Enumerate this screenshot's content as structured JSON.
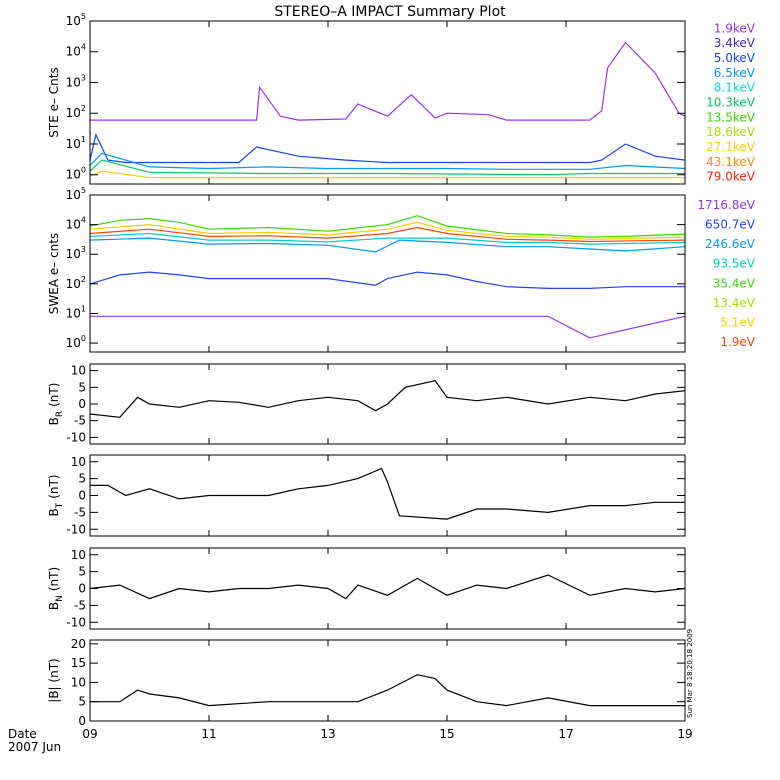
{
  "title": "STEREO–A IMPACT Summary Plot",
  "date_label": "Date",
  "date_range_label": "2007 Jun",
  "timestamp": "Sun Mar  8 18:20:18 2009",
  "x_ticks": [
    "09",
    "11",
    "13",
    "15",
    "17",
    "19"
  ],
  "x_tick_values": [
    9,
    11,
    13,
    15,
    17,
    19
  ],
  "x_range": [
    9,
    19
  ],
  "chart_data": [
    {
      "type": "line",
      "id": "ste",
      "ylabel": "STE e– Cnts",
      "yscale": "log",
      "ylim": [
        0.5,
        100000
      ],
      "yticks": [
        {
          "v": 1,
          "b": "10",
          "e": "0"
        },
        {
          "v": 10,
          "b": "10",
          "e": "1"
        },
        {
          "v": 100,
          "b": "10",
          "e": "2"
        },
        {
          "v": 1000,
          "b": "10",
          "e": "3"
        },
        {
          "v": 10000,
          "b": "10",
          "e": "4"
        },
        {
          "v": 100000,
          "b": "10",
          "e": "5"
        }
      ],
      "legend": [
        {
          "label": "1.9keV",
          "color": "#9933ee"
        },
        {
          "label": "3.4keV",
          "color": "#4422cc"
        },
        {
          "label": "5.0keV",
          "color": "#1144ff"
        },
        {
          "label": "6.5keV",
          "color": "#0099ff"
        },
        {
          "label": "8.1keV",
          "color": "#00dddd"
        },
        {
          "label": "10.3keV",
          "color": "#00cc66"
        },
        {
          "label": "13.5keV",
          "color": "#33dd00"
        },
        {
          "label": "18.6keV",
          "color": "#aadd00"
        },
        {
          "label": "27.1keV",
          "color": "#ffcc00"
        },
        {
          "label": "43.1keV",
          "color": "#ff8800"
        },
        {
          "label": "79.0keV",
          "color": "#ff2200"
        }
      ],
      "series": [
        {
          "color": "#9933ee",
          "x": [
            9.0,
            11.8,
            11.85,
            12.2,
            12.5,
            13.3,
            13.5,
            14.0,
            14.4,
            14.8,
            15.0,
            15.7,
            16.0,
            16.7,
            17.4,
            17.6,
            17.7,
            18.0,
            18.5,
            18.9,
            19.0
          ],
          "y": [
            60,
            60,
            700,
            80,
            60,
            65,
            200,
            80,
            400,
            70,
            100,
            90,
            60,
            60,
            60,
            120,
            3000,
            20000,
            2000,
            100,
            80
          ]
        },
        {
          "color": "#1144ff",
          "x": [
            9.0,
            9.1,
            9.3,
            9.6,
            10.5,
            11.5,
            11.8,
            12.5,
            13.3,
            14.0,
            15.0,
            16.0,
            16.7,
            17.4,
            17.6,
            18.0,
            18.5,
            19.0
          ],
          "y": [
            3,
            20,
            3,
            2.5,
            2.5,
            2.5,
            8,
            4,
            3,
            2.5,
            2.5,
            2.5,
            2.5,
            2.5,
            3,
            10,
            4,
            3
          ]
        },
        {
          "color": "#0099ff",
          "x": [
            9.0,
            9.2,
            10.0,
            11.0,
            12.0,
            13.0,
            14.0,
            15.0,
            16.0,
            16.7,
            17.4,
            18.0,
            19.0
          ],
          "y": [
            2,
            5,
            1.8,
            1.6,
            1.8,
            1.6,
            1.6,
            1.6,
            1.5,
            1.5,
            1.5,
            2,
            1.6
          ]
        },
        {
          "color": "#00cc66",
          "x": [
            9.0,
            9.2,
            10.0,
            12.0,
            14.0,
            16.7,
            17.4,
            19.0
          ],
          "y": [
            1.3,
            3,
            1.2,
            1.1,
            1.1,
            1.0,
            1.1,
            1.1
          ]
        },
        {
          "color": "#ffcc00",
          "x": [
            9.0,
            9.2,
            10.0,
            12.0,
            14.0,
            16.7,
            17.4,
            19.0
          ],
          "y": [
            0.9,
            1.3,
            0.8,
            0.8,
            0.8,
            0.8,
            0.8,
            0.8
          ]
        }
      ]
    },
    {
      "type": "line",
      "id": "swea",
      "ylabel": "SWEA e– cnts",
      "yscale": "log",
      "ylim": [
        0.5,
        100000
      ],
      "yticks": [
        {
          "v": 1,
          "b": "10",
          "e": "0"
        },
        {
          "v": 10,
          "b": "10",
          "e": "1"
        },
        {
          "v": 100,
          "b": "10",
          "e": "2"
        },
        {
          "v": 1000,
          "b": "10",
          "e": "3"
        },
        {
          "v": 10000,
          "b": "10",
          "e": "4"
        },
        {
          "v": 100000,
          "b": "10",
          "e": "5"
        }
      ],
      "legend": [
        {
          "label": "1716.8eV",
          "color": "#9933ee"
        },
        {
          "label": "650.7eV",
          "color": "#2244ff"
        },
        {
          "label": "246.6eV",
          "color": "#0099ff"
        },
        {
          "label": "93.5eV",
          "color": "#00cccc"
        },
        {
          "label": "35.4eV",
          "color": "#33dd00"
        },
        {
          "label": "13.4eV",
          "color": "#aadd00"
        },
        {
          "label": "5.1eV",
          "color": "#ffcc00"
        },
        {
          "label": "1.9eV",
          "color": "#ff4400"
        }
      ],
      "series": [
        {
          "color": "#9933ee",
          "x": [
            9.0,
            16.7,
            17.4,
            19.0
          ],
          "y": [
            8,
            8,
            1.5,
            8
          ]
        },
        {
          "color": "#2244ff",
          "x": [
            9.0,
            9.5,
            10.0,
            10.5,
            11.0,
            12.0,
            13.0,
            13.8,
            14.0,
            14.5,
            15.0,
            15.5,
            16.0,
            16.7,
            17.4,
            18.0,
            19.0
          ],
          "y": [
            100,
            200,
            250,
            200,
            150,
            150,
            150,
            90,
            150,
            250,
            200,
            120,
            80,
            70,
            70,
            80,
            80
          ]
        },
        {
          "color": "#0099ff",
          "x": [
            9.0,
            10.0,
            11.0,
            12.0,
            13.0,
            13.8,
            14.2,
            15.0,
            16.0,
            16.7,
            17.4,
            18.0,
            19.0
          ],
          "y": [
            3000,
            3500,
            2200,
            2300,
            2000,
            1200,
            3000,
            2500,
            1800,
            1800,
            1500,
            1300,
            1800
          ]
        },
        {
          "color": "#00cccc",
          "x": [
            9.0,
            10.0,
            11.0,
            12.0,
            13.0,
            14.0,
            15.0,
            16.0,
            16.7,
            17.4,
            19.0
          ],
          "y": [
            4000,
            5000,
            3000,
            3000,
            2600,
            3500,
            3500,
            2500,
            2500,
            2200,
            2500
          ]
        },
        {
          "color": "#33dd00",
          "x": [
            9.0,
            9.5,
            10.0,
            10.5,
            11.0,
            12.0,
            13.0,
            14.0,
            14.5,
            15.0,
            16.0,
            16.7,
            17.4,
            18.0,
            19.0
          ],
          "y": [
            9000,
            14000,
            16000,
            12000,
            7000,
            8000,
            6000,
            10000,
            20000,
            9000,
            5000,
            4500,
            3800,
            4000,
            4800
          ]
        },
        {
          "color": "#ffcc00",
          "x": [
            9.0,
            10.0,
            11.0,
            12.0,
            13.0,
            14.0,
            14.5,
            15.0,
            16.0,
            16.7,
            17.4,
            19.0
          ],
          "y": [
            7000,
            10000,
            5000,
            5500,
            4500,
            7000,
            12000,
            6500,
            4000,
            3800,
            3200,
            3800
          ]
        },
        {
          "color": "#ff4400",
          "x": [
            9.0,
            10.0,
            11.0,
            12.0,
            13.0,
            14.0,
            14.5,
            15.0,
            16.0,
            16.7,
            17.4,
            19.0
          ],
          "y": [
            5000,
            7000,
            4000,
            4200,
            3500,
            5000,
            8000,
            5000,
            3200,
            3000,
            2700,
            3000
          ]
        }
      ]
    },
    {
      "type": "line",
      "id": "br",
      "ylabel_main": "B",
      "ylabel_sub": "R",
      "ylabel_unit": "(nT)",
      "yscale": "linear",
      "ylim": [
        -12,
        12
      ],
      "yticks": [
        -10,
        -5,
        0,
        5,
        10
      ],
      "series": [
        {
          "color": "#000000",
          "x": [
            9.0,
            9.5,
            9.8,
            10.0,
            10.5,
            11.0,
            11.5,
            12.0,
            12.5,
            13.0,
            13.5,
            13.8,
            14.0,
            14.3,
            14.8,
            15.0,
            15.5,
            16.0,
            16.7,
            17.4,
            18.0,
            18.5,
            19.0
          ],
          "y": [
            -3,
            -4,
            2,
            0,
            -1,
            1,
            0.5,
            -1,
            1,
            2,
            1,
            -2,
            0,
            5,
            7,
            2,
            1,
            2,
            0,
            2,
            1,
            3,
            4
          ]
        }
      ]
    },
    {
      "type": "line",
      "id": "bt",
      "ylabel_main": "B",
      "ylabel_sub": "T",
      "ylabel_unit": "(nT)",
      "yscale": "linear",
      "ylim": [
        -12,
        12
      ],
      "yticks": [
        -10,
        -5,
        0,
        5,
        10
      ],
      "series": [
        {
          "color": "#000000",
          "x": [
            9.0,
            9.3,
            9.6,
            10.0,
            10.5,
            11.0,
            12.0,
            12.5,
            13.0,
            13.5,
            13.9,
            14.0,
            14.2,
            15.0,
            15.5,
            16.0,
            16.7,
            17.4,
            18.0,
            18.5,
            19.0
          ],
          "y": [
            3,
            3,
            0,
            2,
            -1,
            0,
            0,
            2,
            3,
            5,
            8,
            4,
            -6,
            -7,
            -4,
            -4,
            -5,
            -3,
            -3,
            -2,
            -2
          ]
        }
      ]
    },
    {
      "type": "line",
      "id": "bn",
      "ylabel_main": "B",
      "ylabel_sub": "N",
      "ylabel_unit": "(nT)",
      "yscale": "linear",
      "ylim": [
        -12,
        12
      ],
      "yticks": [
        -10,
        -5,
        0,
        5,
        10
      ],
      "series": [
        {
          "color": "#000000",
          "x": [
            9.0,
            9.5,
            10.0,
            10.5,
            11.0,
            11.5,
            12.0,
            12.5,
            13.0,
            13.3,
            13.5,
            14.0,
            14.5,
            15.0,
            15.5,
            16.0,
            16.7,
            17.4,
            18.0,
            18.5,
            19.0
          ],
          "y": [
            0,
            1,
            -3,
            0,
            -1,
            0,
            0,
            1,
            0,
            -3,
            1,
            -2,
            3,
            -2,
            1,
            0,
            4,
            -2,
            0,
            -1,
            0
          ]
        }
      ]
    },
    {
      "type": "line",
      "id": "bmag",
      "ylabel": "|B| (nT)",
      "yscale": "linear",
      "ylim": [
        0,
        21
      ],
      "yticks": [
        0,
        5,
        10,
        15,
        20
      ],
      "series": [
        {
          "color": "#000000",
          "x": [
            9.0,
            9.5,
            9.8,
            10.0,
            10.5,
            11.0,
            12.0,
            13.0,
            13.5,
            14.0,
            14.5,
            14.8,
            15.0,
            15.5,
            16.0,
            16.7,
            17.4,
            18.0,
            19.0
          ],
          "y": [
            5,
            5,
            8,
            7,
            6,
            4,
            5,
            5,
            5,
            8,
            12,
            11,
            8,
            5,
            4,
            6,
            4,
            4,
            4
          ]
        }
      ]
    }
  ]
}
